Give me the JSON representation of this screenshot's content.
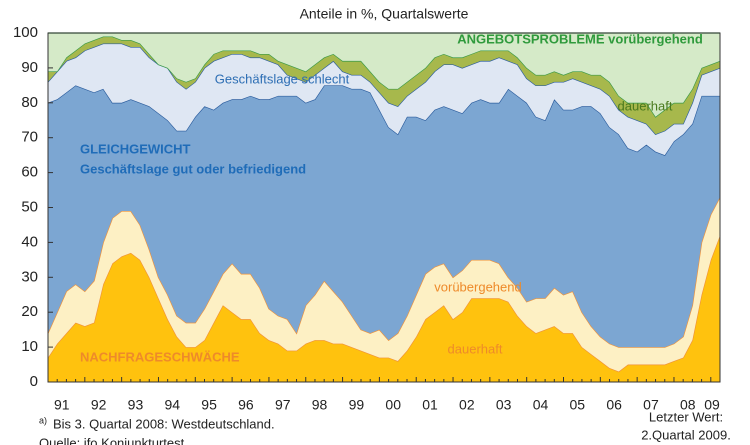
{
  "chart_data": {
    "type": "stacked_area",
    "title": "Anteile in %, Quartalswerte",
    "categories": [
      "91",
      null,
      null,
      null,
      "92",
      null,
      null,
      null,
      "93",
      null,
      null,
      null,
      "94",
      null,
      null,
      null,
      "95",
      null,
      null,
      null,
      "96",
      null,
      null,
      null,
      "97",
      null,
      null,
      null,
      "98",
      null,
      null,
      null,
      "99",
      null,
      null,
      null,
      "00",
      null,
      null,
      null,
      "01",
      null,
      null,
      null,
      "02",
      null,
      null,
      null,
      "03",
      null,
      null,
      null,
      "04",
      null,
      null,
      null,
      "05",
      null,
      null,
      null,
      "06",
      null,
      null,
      null,
      "07",
      null,
      null,
      null,
      "08",
      null,
      null,
      null,
      "09",
      null
    ],
    "series": [
      {
        "name": "dauerhaft",
        "color": "#ffc20e",
        "values": [
          7,
          11,
          14,
          17,
          16,
          17,
          28,
          34,
          36,
          37,
          35,
          30,
          24,
          18,
          13,
          10,
          10,
          12,
          17,
          22,
          20,
          18,
          18,
          14,
          12,
          11,
          9,
          9,
          11,
          12,
          12,
          11,
          11,
          10,
          9,
          8,
          7,
          7,
          6,
          9,
          13,
          18,
          20,
          22,
          18,
          20,
          24,
          24,
          24,
          24,
          23,
          19,
          16,
          14,
          15,
          16,
          14,
          14,
          10,
          8,
          6,
          4,
          3,
          5,
          5,
          5,
          5,
          5,
          6,
          7,
          12,
          25,
          35,
          42
        ]
      },
      {
        "name": "vorübergehend",
        "color": "#fdf0c4",
        "values": [
          7,
          9,
          12,
          11,
          10,
          12,
          12,
          13,
          13,
          12,
          10,
          8,
          6,
          7,
          6,
          7,
          7,
          9,
          9,
          9,
          14,
          13,
          13,
          13,
          9,
          8,
          9,
          5,
          11,
          13,
          17,
          15,
          12,
          9,
          6,
          6,
          8,
          5,
          8,
          10,
          12,
          13,
          13,
          12,
          12,
          12,
          11,
          11,
          11,
          10,
          7,
          8,
          7,
          10,
          9,
          11,
          11,
          12,
          10,
          8,
          7,
          7,
          7,
          5,
          5,
          5,
          5,
          5,
          5,
          6,
          10,
          15,
          13,
          11
        ]
      },
      {
        "name": "Geschäftslage gut oder befriedigend",
        "color": "#7ca6d2",
        "values": [
          66,
          61,
          57,
          57,
          58,
          54,
          44,
          33,
          31,
          32,
          35,
          41,
          47,
          50,
          53,
          55,
          59,
          58,
          52,
          49,
          47,
          50,
          51,
          54,
          60,
          63,
          64,
          68,
          58,
          56,
          56,
          59,
          62,
          65,
          69,
          69,
          63,
          61,
          57,
          57,
          51,
          44,
          45,
          45,
          48,
          45,
          45,
          46,
          45,
          46,
          54,
          55,
          57,
          52,
          51,
          54,
          53,
          52,
          59,
          63,
          64,
          62,
          61,
          57,
          56,
          58,
          56,
          55,
          58,
          58,
          52,
          42,
          34,
          29
        ]
      },
      {
        "name": "Geschäftslage schlecht",
        "color": "#dfe7f3",
        "values": [
          6,
          8,
          9,
          8,
          11,
          13,
          13,
          17,
          17,
          15,
          16,
          14,
          14,
          15,
          14,
          12,
          10,
          11,
          14,
          13,
          13,
          13,
          11,
          12,
          11,
          9,
          6,
          5,
          6,
          7,
          5,
          7,
          4,
          4,
          4,
          3,
          5,
          7,
          8,
          6,
          8,
          11,
          11,
          12,
          13,
          13,
          11,
          11,
          12,
          13,
          8,
          9,
          7,
          9,
          10,
          5,
          8,
          9,
          7,
          6,
          7,
          9,
          7,
          9,
          9,
          6,
          5,
          7,
          5,
          3,
          6,
          6,
          7,
          8
        ]
      },
      {
        "name": "dauerhaft",
        "color": "#a7b84c",
        "values": [
          3,
          0,
          1,
          2,
          2,
          2,
          2,
          2,
          1,
          2,
          1,
          1,
          0,
          0,
          1,
          2,
          1,
          1,
          2,
          2,
          1,
          1,
          2,
          1,
          2,
          1,
          3,
          3,
          3,
          3,
          3,
          2,
          3,
          4,
          4,
          3,
          3,
          4,
          5,
          4,
          4,
          4,
          4,
          3,
          2,
          3,
          3,
          3,
          3,
          2,
          3,
          2,
          3,
          3,
          3,
          3,
          2,
          2,
          3,
          3,
          4,
          4,
          4,
          4,
          5,
          6,
          5,
          6,
          6,
          6,
          4,
          2,
          2,
          2
        ]
      },
      {
        "name": "ANGEBOTSPROBLEME vorübergehend",
        "color": "#d5eac8",
        "values": [
          11,
          11,
          7,
          5,
          3,
          2,
          1,
          1,
          2,
          2,
          3,
          6,
          9,
          10,
          13,
          14,
          13,
          9,
          6,
          5,
          5,
          5,
          5,
          6,
          6,
          8,
          9,
          10,
          11,
          9,
          7,
          6,
          8,
          8,
          8,
          11,
          14,
          16,
          16,
          14,
          12,
          10,
          7,
          6,
          7,
          7,
          6,
          5,
          5,
          5,
          5,
          7,
          10,
          12,
          12,
          11,
          12,
          11,
          11,
          12,
          12,
          14,
          18,
          20,
          20,
          20,
          24,
          22,
          20,
          20,
          16,
          10,
          9,
          8
        ]
      }
    ],
    "annotations": [
      "NACHFRAGESCHWÄCHE",
      "GLEICHGEWICHT"
    ],
    "ylim": [
      0,
      100
    ],
    "yticks": [
      0,
      10,
      20,
      30,
      40,
      50,
      60,
      70,
      80,
      90,
      100
    ],
    "footnote_mark": "a)",
    "footnote": "Bis 3. Quartal 2008: Westdeutschland.",
    "source": "Quelle: ifo Konjunkturtest.",
    "last_value": [
      "Letzter Wert:",
      "2.Quartal 2009."
    ]
  }
}
